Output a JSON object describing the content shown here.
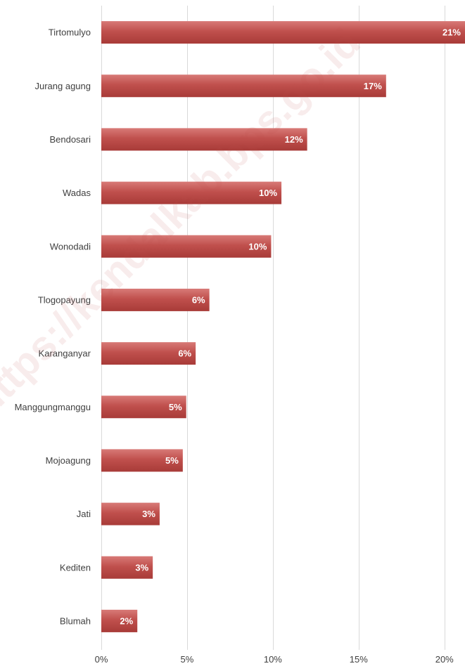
{
  "chart_data": {
    "type": "bar",
    "orientation": "horizontal",
    "categories": [
      "Tirtomulyo",
      "Jurang agung",
      "Bendosari",
      "Wadas",
      "Wonodadi",
      "Tlogopayung",
      "Karanganyar",
      "Manggungmanggu",
      "Mojoagung",
      "Jati",
      "Kediten",
      "Blumah"
    ],
    "values": [
      21.2,
      16.6,
      12.0,
      10.5,
      9.9,
      6.3,
      5.5,
      4.95,
      4.75,
      3.4,
      3.0,
      2.1
    ],
    "value_labels": [
      "21%",
      "17%",
      "12%",
      "10%",
      "10%",
      "6%",
      "6%",
      "5%",
      "5%",
      "3%",
      "3%",
      "2%"
    ],
    "xlim": [
      0,
      21.2
    ],
    "x_ticks": [
      0,
      5,
      10,
      15,
      20
    ],
    "x_tick_labels": [
      "0%",
      "5%",
      "10%",
      "15%",
      "20%"
    ],
    "grid": "vertical",
    "bar_color": "#c0504d"
  },
  "watermark": {
    "text": "https://kendalkab.bps.go.id"
  }
}
